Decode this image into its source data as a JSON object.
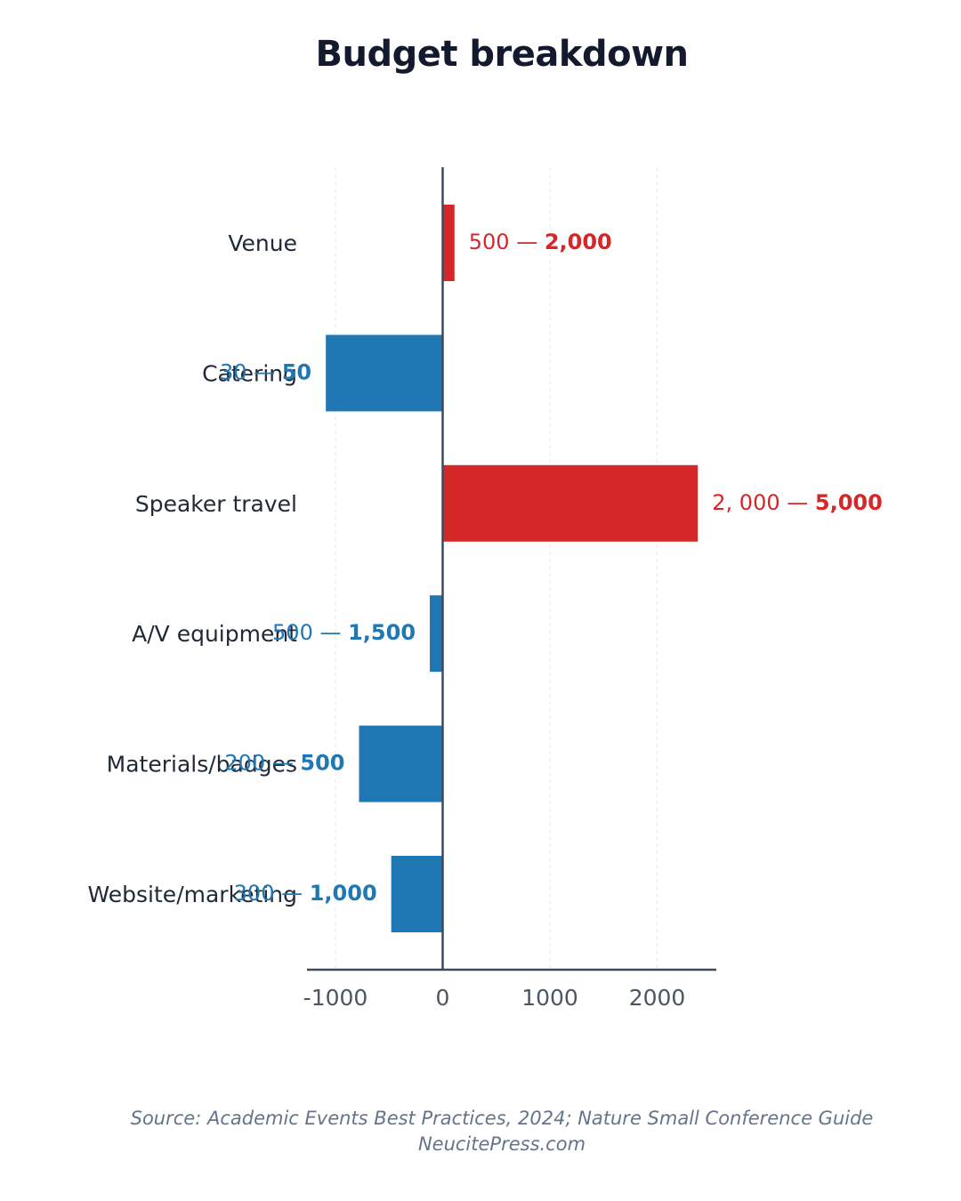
{
  "chart_data": {
    "type": "bar",
    "orientation": "horizontal",
    "title": "Budget breakdown",
    "categories": [
      "Venue",
      "Catering",
      "Speaker travel",
      "A/V equipment",
      "Materials/badges",
      "Website/marketing"
    ],
    "values": [
      110,
      -1090,
      2380,
      -120,
      -780,
      -480
    ],
    "bar_colors": [
      "#d62728",
      "#1f77b4",
      "#d62728",
      "#1f77b4",
      "#1f77b4",
      "#1f77b4"
    ],
    "data_labels": [
      {
        "low": "500 — ",
        "high": "2,000"
      },
      {
        "low": "30 — ",
        "high": "50"
      },
      {
        "low": "2, 000 — ",
        "high": "5,000"
      },
      {
        "low": "500 — ",
        "high": "1,500"
      },
      {
        "low": "200 — ",
        "high": "500"
      },
      {
        "low": "300 — ",
        "high": "1,000"
      }
    ],
    "xticks": [
      -1000,
      0,
      1000,
      2000
    ],
    "xtick_labels": [
      "-1000",
      "0",
      "1000",
      "2000"
    ],
    "xlim": [
      -1270,
      2560
    ],
    "grid": true,
    "colors": {
      "positive": "#d62728",
      "negative": "#1f77b4",
      "axis": "#3e4a5c"
    }
  },
  "footer": {
    "source": "Source: Academic Events Best Practices, 2024; Nature Small Conference Guide",
    "credit": "NeucitePress.com"
  }
}
